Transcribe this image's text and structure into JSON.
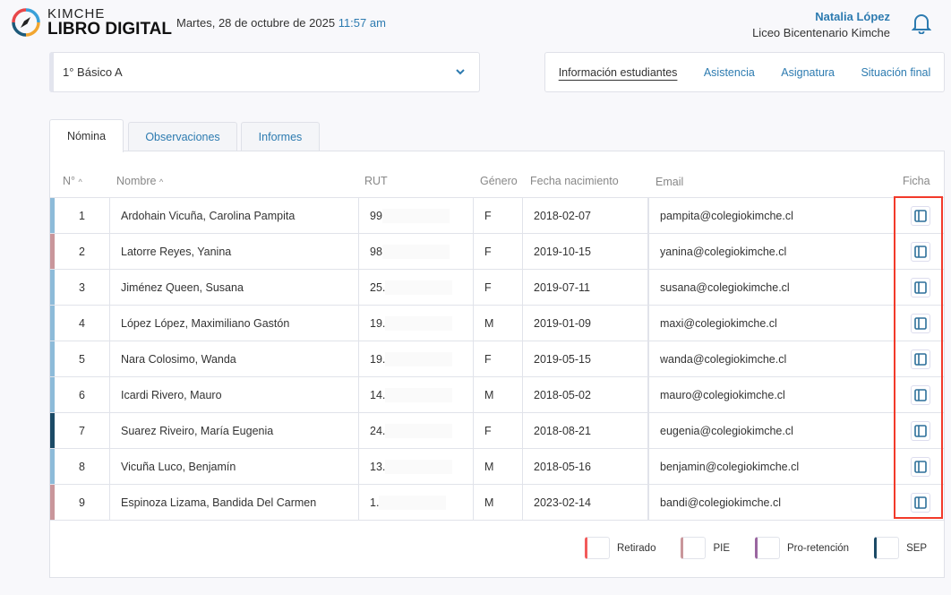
{
  "header": {
    "brand_top": "KIMCHE",
    "brand_bottom": "LIBRO DIGITAL",
    "date": "Martes, 28 de octubre de 2025",
    "time": "11:57 am",
    "user_name": "Natalia López",
    "school": "Liceo Bicentenario Kimche"
  },
  "course_select": {
    "value": "1° Básico A"
  },
  "nav": [
    {
      "label": "Información estudiantes",
      "active": true
    },
    {
      "label": "Asistencia"
    },
    {
      "label": "Asignatura"
    },
    {
      "label": "Situación final"
    }
  ],
  "tabs": [
    {
      "label": "Nómina",
      "active": true
    },
    {
      "label": "Observaciones"
    },
    {
      "label": "Informes"
    }
  ],
  "table": {
    "headers": {
      "num": "N°",
      "name": "Nombre",
      "rut": "RUT",
      "gender": "Género",
      "birth": "Fecha nacimiento",
      "email": "Email",
      "ficha": "Ficha"
    },
    "rows": [
      {
        "n": "1",
        "name": "Ardohain Vicuña, Carolina Pampita",
        "rut": "99",
        "g": "F",
        "birth": "2018-02-07",
        "email": "pampita@colegiokimche.cl",
        "color": "#8dbbd9"
      },
      {
        "n": "2",
        "name": "Latorre Reyes, Yanina",
        "rut": "98",
        "g": "F",
        "birth": "2019-10-15",
        "email": "yanina@colegiokimche.cl",
        "color": "#c9969b"
      },
      {
        "n": "3",
        "name": "Jiménez Queen, Susana",
        "rut": "25.",
        "g": "F",
        "birth": "2019-07-11",
        "email": "susana@colegiokimche.cl",
        "color": "#8dbbd9"
      },
      {
        "n": "4",
        "name": "López López, Maximiliano Gastón",
        "rut": "19.",
        "g": "M",
        "birth": "2019-01-09",
        "email": "maxi@colegiokimche.cl",
        "color": "#8dbbd9"
      },
      {
        "n": "5",
        "name": "Nara Colosimo, Wanda",
        "rut": "19.",
        "g": "F",
        "birth": "2019-05-15",
        "email": "wanda@colegiokimche.cl",
        "color": "#8dbbd9"
      },
      {
        "n": "6",
        "name": "Icardi Rivero, Mauro",
        "rut": "14.",
        "g": "M",
        "birth": "2018-05-02",
        "email": "mauro@colegiokimche.cl",
        "color": "#8dbbd9"
      },
      {
        "n": "7",
        "name": "Suarez Riveiro, María Eugenia",
        "rut": "24.",
        "g": "F",
        "birth": "2018-08-21",
        "email": "eugenia@colegiokimche.cl",
        "color": "#1b4a66"
      },
      {
        "n": "8",
        "name": "Vicuña Luco, Benjamín",
        "rut": "13.",
        "g": "M",
        "birth": "2018-05-16",
        "email": "benjamin@colegiokimche.cl",
        "color": "#8dbbd9"
      },
      {
        "n": "9",
        "name": "Espinoza Lizama, Bandida Del Carmen",
        "rut": "1.",
        "g": "M",
        "birth": "2023-02-14",
        "email": "bandi@colegiokimche.cl",
        "color": "#c9969b"
      }
    ]
  },
  "legend": [
    {
      "label": "Retirado",
      "color": "#f25b5b"
    },
    {
      "label": "PIE",
      "color": "#c9969b"
    },
    {
      "label": "Pro-retención",
      "color": "#9a66a0"
    },
    {
      "label": "SEP",
      "color": "#1b4a66"
    }
  ],
  "colors": {
    "accent": "#2d7bb0",
    "highlight": "#f23a2a"
  }
}
